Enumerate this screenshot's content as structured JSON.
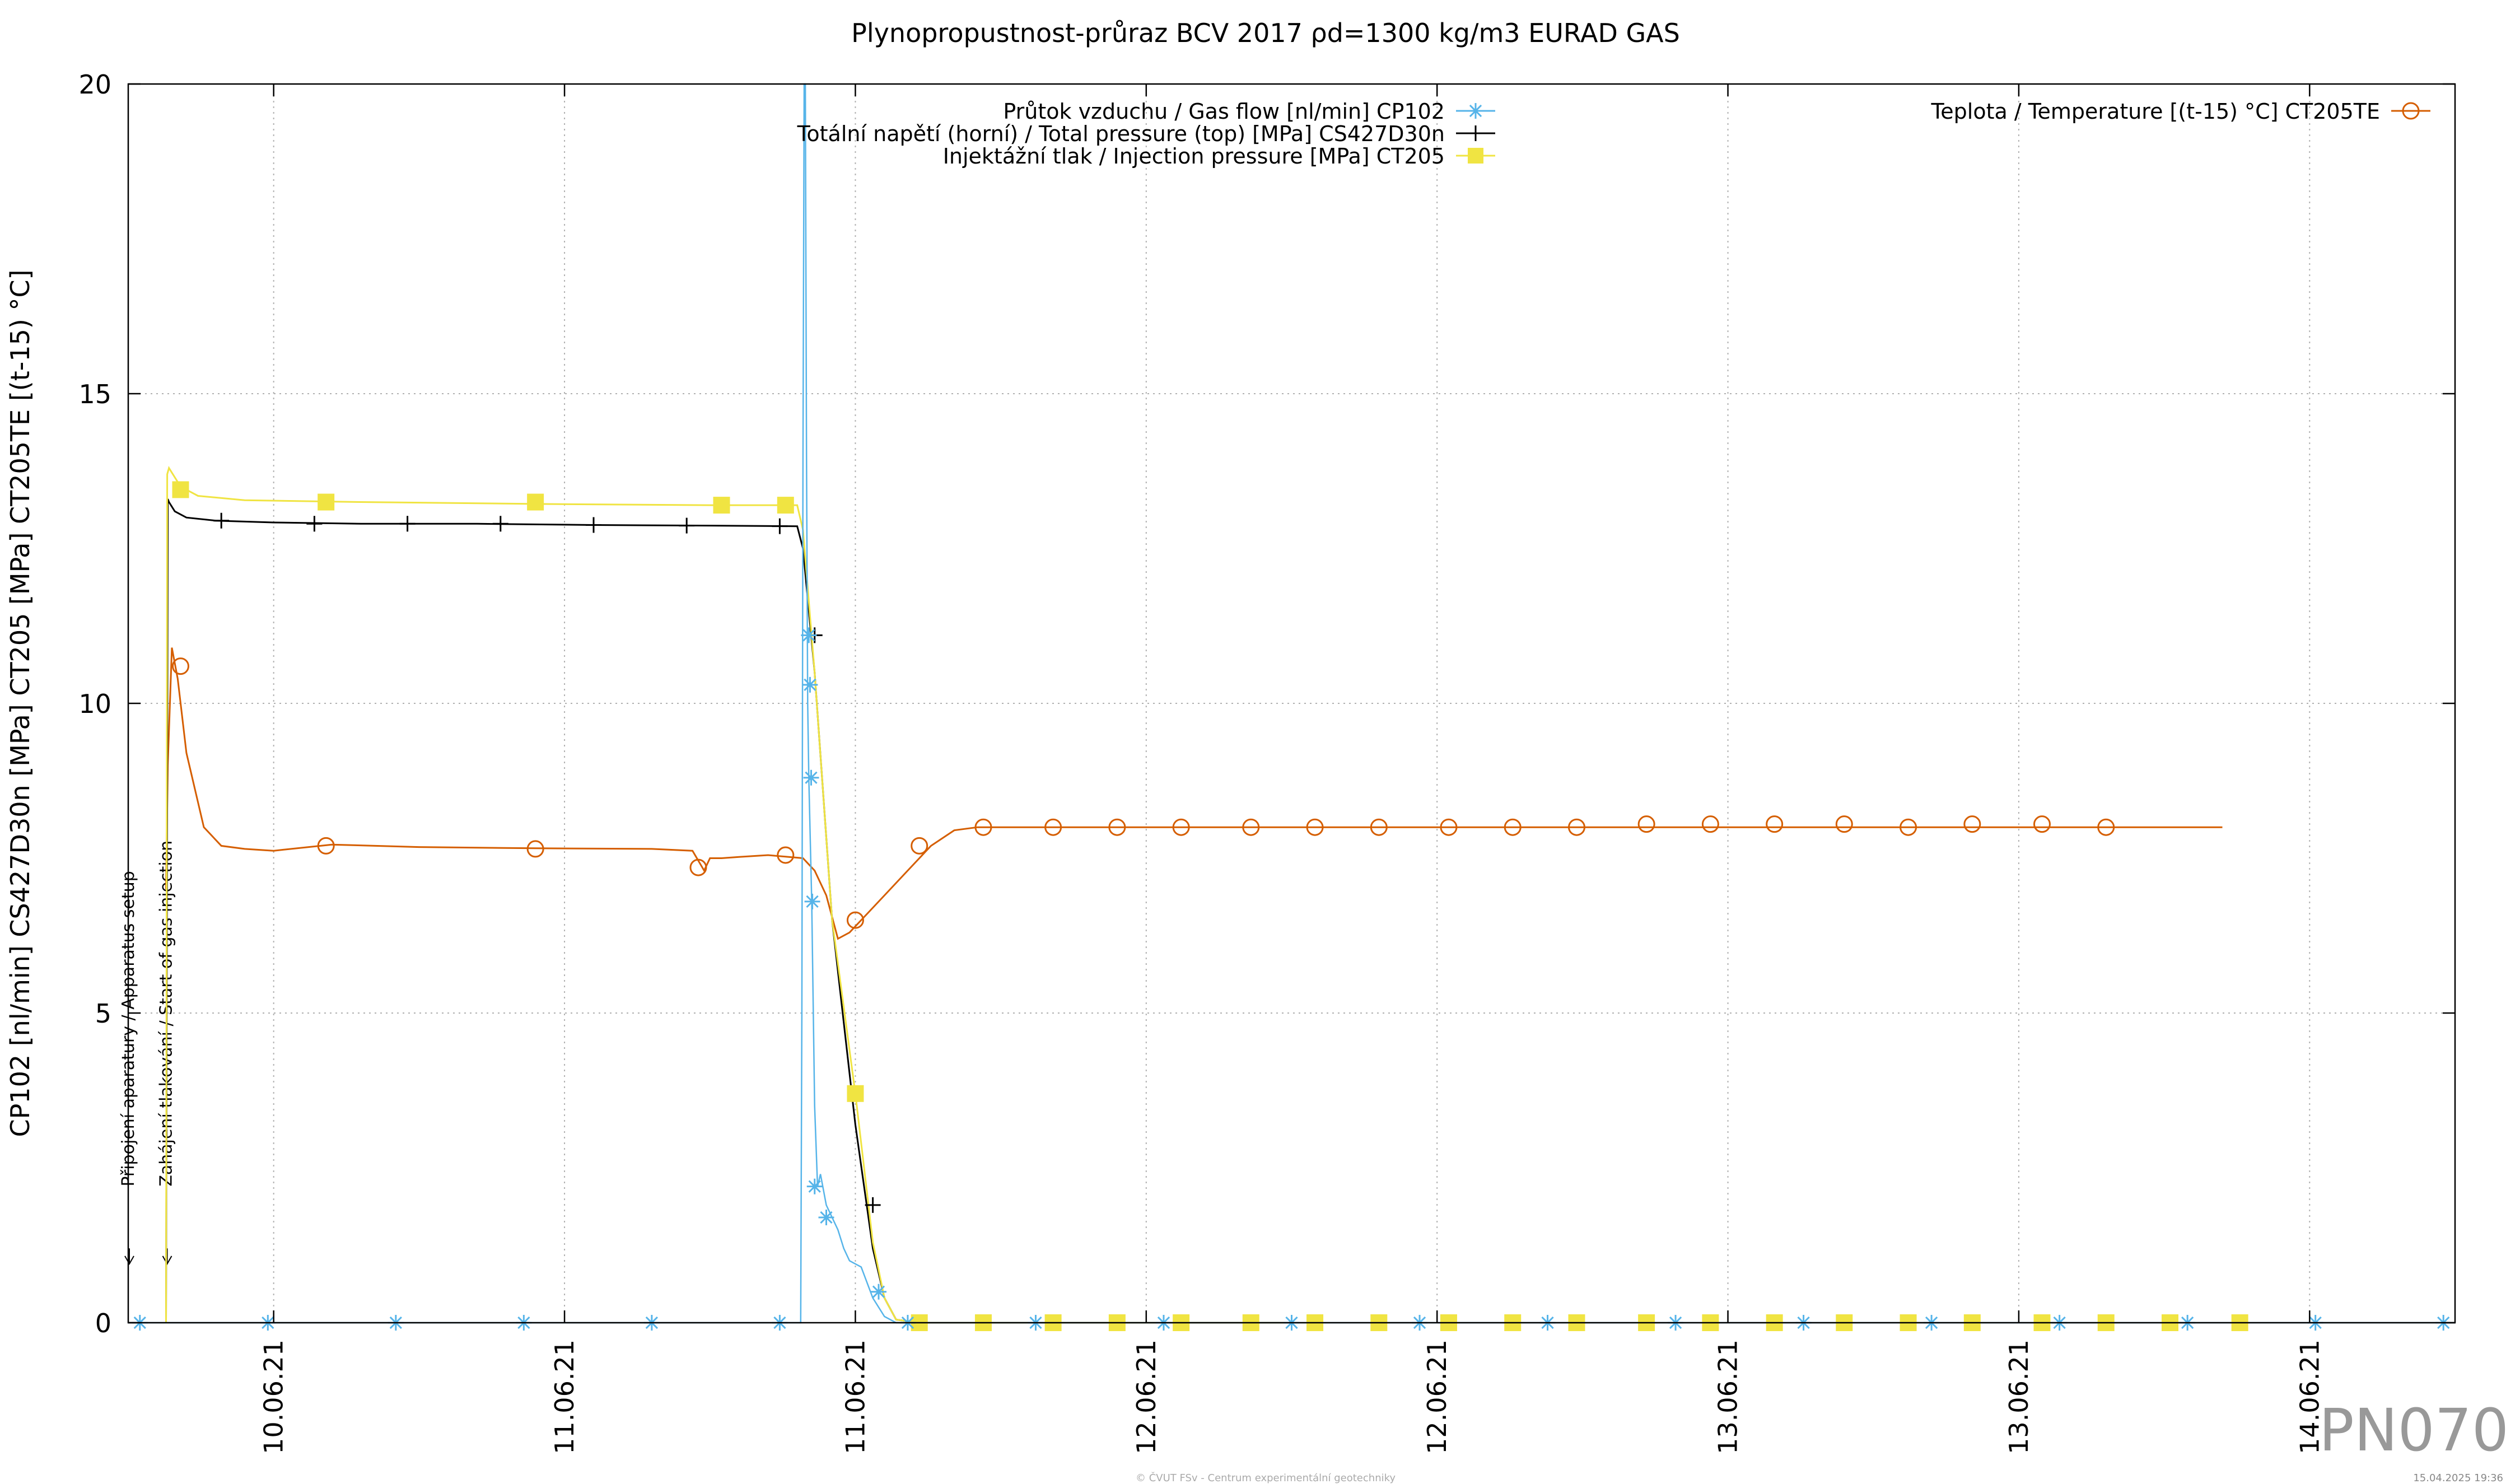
{
  "chart_data": {
    "type": "line",
    "title": "Plynopropustnost-průraz BCV 2017 ρd=1300 kg/m3 EURAD GAS",
    "ylabel": "CP102 [nl/min] CS427D30n [MPa] CT205 [MPa] CT205TE [(t-15) °C]",
    "ylim": [
      0,
      20
    ],
    "yticks": [
      "0",
      "5",
      "10",
      "15",
      "20"
    ],
    "xlim": [
      0,
      4.0
    ],
    "xticks": [
      {
        "x": 0.25,
        "label": "10.06.21"
      },
      {
        "x": 0.75,
        "label": "11.06.21"
      },
      {
        "x": 1.25,
        "label": "11.06.21"
      },
      {
        "x": 1.75,
        "label": "12.06.21"
      },
      {
        "x": 2.25,
        "label": "12.06.21"
      },
      {
        "x": 2.75,
        "label": "13.06.21"
      },
      {
        "x": 3.25,
        "label": "13.06.21"
      },
      {
        "x": 3.75,
        "label": "14.06.21"
      }
    ],
    "grid": true,
    "legend_left": "top-center",
    "legend_right": "top-right",
    "series": [
      {
        "name": "Průtok vzduchu / Gas flow [nl/min] CP102",
        "color": "#56b4e9",
        "marker": "star",
        "x": [
          0,
          1.156,
          1.158,
          1.16,
          1.162,
          1.164,
          1.166,
          1.168,
          1.17,
          1.175,
          1.18,
          1.185,
          1.19,
          1.2,
          1.21,
          1.22,
          1.23,
          1.24,
          1.26,
          1.28,
          1.3,
          1.32,
          1.34,
          4.0
        ],
        "y": [
          0,
          0,
          5,
          14,
          20,
          20,
          14,
          10,
          8.8,
          6.8,
          3.5,
          2.2,
          2.4,
          1.9,
          1.7,
          1.5,
          1.2,
          1.0,
          0.9,
          0.4,
          0.1,
          0,
          0,
          0
        ],
        "markers_x": [
          0.02,
          0.24,
          0.46,
          0.68,
          0.9,
          1.12,
          1.17,
          1.172,
          1.174,
          1.176,
          1.18,
          1.2,
          1.29,
          1.34,
          1.56,
          1.78,
          2.0,
          2.22,
          2.44,
          2.66,
          2.88,
          3.1,
          3.32,
          3.54,
          3.76,
          3.98
        ],
        "markers_y": [
          0,
          0,
          0,
          0,
          0,
          0,
          11.1,
          10.3,
          8.8,
          6.8,
          2.2,
          1.7,
          0.5,
          0,
          0,
          0,
          0,
          0,
          0,
          0,
          0,
          0,
          0,
          0,
          0,
          0
        ]
      },
      {
        "name": "Totální napětí (horní) / Total pressure (top) [MPa] CS427D30n",
        "color": "#000000",
        "marker": "plus",
        "x": [
          0.065,
          0.068,
          0.07,
          0.08,
          0.1,
          0.15,
          0.25,
          0.4,
          0.6,
          0.8,
          1.0,
          1.15,
          1.16,
          1.18,
          1.21,
          1.25,
          1.28,
          1.3,
          1.32,
          1.36,
          1.5,
          2.0
        ],
        "y": [
          0,
          13.3,
          13.25,
          13.1,
          13.0,
          12.95,
          12.92,
          12.9,
          12.9,
          12.88,
          12.87,
          12.86,
          12.5,
          10.5,
          6.5,
          3.2,
          1.2,
          0.4,
          0.05,
          0,
          0,
          0
        ],
        "markers_x": [
          0.16,
          0.32,
          0.48,
          0.64,
          0.8,
          0.96,
          1.12,
          1.18,
          1.28
        ],
        "markers_y": [
          12.95,
          12.9,
          12.9,
          12.9,
          12.88,
          12.87,
          12.86,
          11.1,
          1.9
        ]
      },
      {
        "name": "Injektážní tlak / Injection pressure [MPa] CT205",
        "color": "#f0e442",
        "marker": "square",
        "x": [
          0.065,
          0.067,
          0.07,
          0.09,
          0.12,
          0.2,
          0.4,
          0.7,
          1.0,
          1.15,
          1.16,
          1.18,
          1.21,
          1.25,
          1.28,
          1.3,
          1.32,
          1.36,
          2.0
        ],
        "y": [
          0,
          13.7,
          13.8,
          13.5,
          13.35,
          13.28,
          13.25,
          13.22,
          13.2,
          13.2,
          12.8,
          10.5,
          6.5,
          3.7,
          1.3,
          0.4,
          0.05,
          0,
          0
        ],
        "markers_x": [
          0.09,
          0.34,
          0.7,
          1.02,
          1.13,
          1.25,
          1.36,
          1.47,
          1.59,
          1.7,
          1.81,
          1.93,
          2.04,
          2.15,
          2.27,
          2.38,
          2.49,
          2.61,
          2.72,
          2.83,
          2.95,
          3.06,
          3.17,
          3.29,
          3.4,
          3.51,
          3.63
        ],
        "markers_y": [
          13.45,
          13.25,
          13.25,
          13.2,
          13.2,
          3.7,
          0,
          0,
          0,
          0,
          0,
          0,
          0,
          0,
          0,
          0,
          0,
          0,
          0,
          0,
          0,
          0,
          0,
          0,
          0,
          0,
          0
        ]
      },
      {
        "name": "Teplota / Temperature [(t-15) °C] CT205TE",
        "color": "#d55e00",
        "marker": "circle",
        "x": [
          0.065,
          0.068,
          0.075,
          0.085,
          0.1,
          0.13,
          0.16,
          0.2,
          0.25,
          0.35,
          0.5,
          0.7,
          0.9,
          0.97,
          0.99,
          1.0,
          1.02,
          1.05,
          1.1,
          1.16,
          1.18,
          1.2,
          1.22,
          1.24,
          1.26,
          1.3,
          1.34,
          1.38,
          1.42,
          1.46,
          1.5,
          1.6,
          2.0,
          2.5,
          3.0,
          3.5,
          3.6
        ],
        "y": [
          7.0,
          9.0,
          10.9,
          10.4,
          9.2,
          8.0,
          7.7,
          7.65,
          7.62,
          7.72,
          7.68,
          7.66,
          7.65,
          7.62,
          7.3,
          7.5,
          7.5,
          7.52,
          7.55,
          7.5,
          7.3,
          6.9,
          6.2,
          6.3,
          6.5,
          6.9,
          7.3,
          7.7,
          7.95,
          8.0,
          8.0,
          8.0,
          8.0,
          8.0,
          8.0,
          8.0,
          8.0
        ],
        "markers_x": [
          0.09,
          0.34,
          0.7,
          0.98,
          1.13,
          1.25,
          1.36,
          1.47,
          1.59,
          1.7,
          1.81,
          1.93,
          2.04,
          2.15,
          2.27,
          2.38,
          2.49,
          2.61,
          2.72,
          2.83,
          2.95,
          3.06,
          3.17,
          3.29,
          3.4
        ],
        "markers_y": [
          10.6,
          7.7,
          7.65,
          7.35,
          7.55,
          6.5,
          7.7,
          8.0,
          8.0,
          8.0,
          8.0,
          8.0,
          8.0,
          8.0,
          8.0,
          8.0,
          8.0,
          8.05,
          8.05,
          8.05,
          8.05,
          8.0,
          8.05,
          8.05,
          8.0
        ]
      }
    ],
    "annotations": [
      {
        "x": 0.0,
        "text": "Připojení aparatury / Apparatus setup"
      },
      {
        "x": 0.065,
        "text": "Zahájení tlakování / Start of gas injection"
      }
    ],
    "watermark": "PN070",
    "footer_center": "© ČVUT FSv - Centrum experimentální geotechniky",
    "footer_right": "15.04.2025 19:36"
  }
}
